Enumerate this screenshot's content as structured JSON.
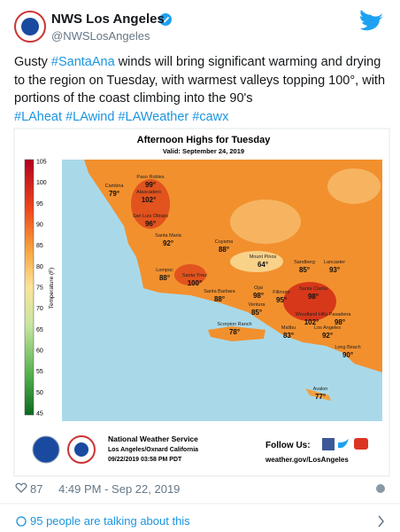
{
  "header": {
    "name": "NWS Los Angeles",
    "handle": "@NWSLosAngeles"
  },
  "tweet": {
    "text": [
      "Gusty ",
      "#SantaAna",
      " winds will bring significant warming and drying to the region on Tuesday, with warmest valleys topping 100°, with portions of the coast climbing into the 90's"
    ],
    "hashtags": [
      "#LAheat",
      "#LAwind",
      "#LAWeather",
      "#cawx"
    ]
  },
  "image": {
    "title": "Afternoon Highs for Tuesday",
    "subtitle": "Valid: September 24, 2019",
    "colorbar": {
      "label": "Temperature (F)",
      "ticks": [
        "105",
        "100",
        "95",
        "90",
        "85",
        "80",
        "75",
        "70",
        "65",
        "60",
        "55",
        "50",
        "45"
      ]
    },
    "cities": [
      {
        "name": "Paso Robles",
        "temp": "99°"
      },
      {
        "name": "Cambria",
        "temp": "79°"
      },
      {
        "name": "Atascadero",
        "temp": "102°"
      },
      {
        "name": "San Luis Obispo",
        "temp": "96°"
      },
      {
        "name": "Santa Maria",
        "temp": "92°"
      },
      {
        "name": "Lompoc",
        "temp": "88°"
      },
      {
        "name": "Santa Ynez",
        "temp": "100°"
      },
      {
        "name": "Cuyama",
        "temp": "88°"
      },
      {
        "name": "Santa Barbara",
        "temp": "88°"
      },
      {
        "name": "Mount Pinos",
        "temp": "64°"
      },
      {
        "name": "Sandberg",
        "temp": "85°"
      },
      {
        "name": "Lancaster",
        "temp": "93°"
      },
      {
        "name": "Ojai",
        "temp": "98°"
      },
      {
        "name": "Fillmore",
        "temp": "95°"
      },
      {
        "name": "Santa Clarita",
        "temp": "98°"
      },
      {
        "name": "Ventura",
        "temp": "85°"
      },
      {
        "name": "Woodland Hills",
        "temp": "102°"
      },
      {
        "name": "Pasadena",
        "temp": "98°"
      },
      {
        "name": "Malibu",
        "temp": "83°"
      },
      {
        "name": "Los Angeles",
        "temp": "92°"
      },
      {
        "name": "Long Beach",
        "temp": "90°"
      },
      {
        "name": "Scorpion Ranch",
        "temp": "78°"
      },
      {
        "name": "Avalon",
        "temp": "77°"
      }
    ],
    "footer": {
      "office": "National Weather Service",
      "location": "Los Angeles/Oxnard California",
      "issued": "09/22/2019 03:58 PM PDT",
      "follow": "Follow Us:",
      "url": "weather.gov/LosAngeles"
    }
  },
  "meta": {
    "likes": "87",
    "time": "4:49 PM - Sep 22, 2019"
  },
  "talking": "95 people are talking about this"
}
